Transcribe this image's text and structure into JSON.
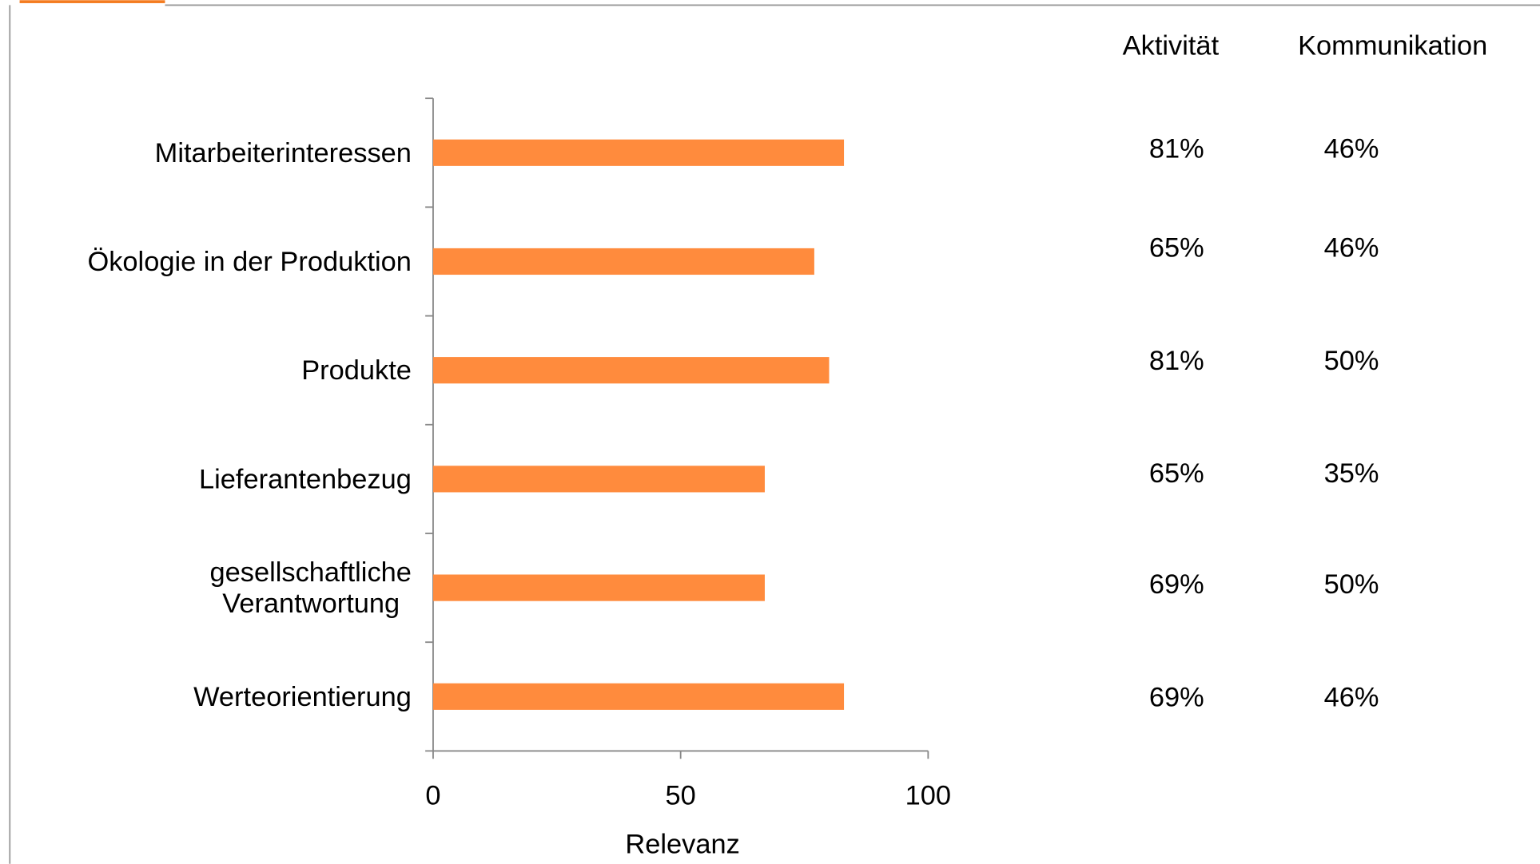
{
  "chart_data": {
    "type": "barh",
    "categories": [
      "Mitarbeiterinteressen",
      "Ökologie in der Produktion",
      "Produkte",
      "Lieferantenbezug",
      "gesellschaftliche\nVerantwortung",
      "Werteorientierung"
    ],
    "values": [
      83,
      77,
      80,
      67,
      67,
      83
    ],
    "color": "#ff8b3d",
    "xlim": [
      0,
      100
    ],
    "xticks": [
      0,
      50,
      100
    ],
    "xlabel": "Relevanz"
  },
  "table": {
    "columns": [
      "Aktivität",
      "Kommunikation"
    ],
    "rows": [
      [
        "81%",
        "46%"
      ],
      [
        "65%",
        "46%"
      ],
      [
        "81%",
        "50%"
      ],
      [
        "65%",
        "35%"
      ],
      [
        "69%",
        "50%"
      ],
      [
        "69%",
        "46%"
      ]
    ]
  }
}
